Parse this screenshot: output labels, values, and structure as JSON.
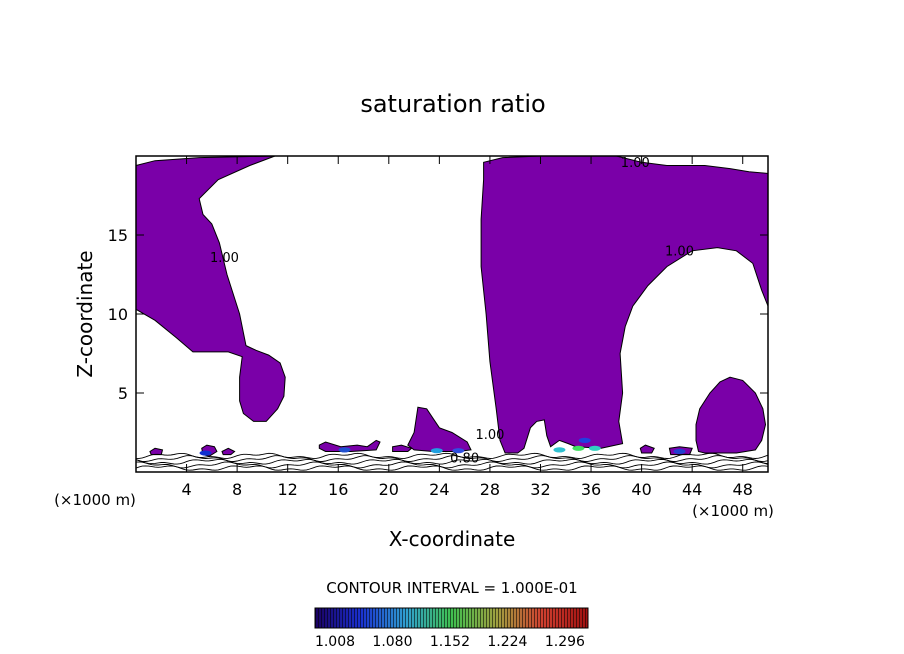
{
  "chart_data": {
    "type": "contour",
    "title": "saturation ratio",
    "xlabel": "X-coordinate",
    "ylabel": "Z-coordinate",
    "x_unit_left": "(×1000 m)",
    "x_unit_right": "(×1000 m)",
    "xlim": [
      0,
      50
    ],
    "ylim": [
      0,
      20
    ],
    "x_ticks": [
      4,
      8,
      12,
      16,
      20,
      24,
      28,
      32,
      36,
      40,
      44,
      48
    ],
    "y_ticks": [
      5,
      10,
      15
    ],
    "contour_interval_label": "CONTOUR INTERVAL = 1.000E-01",
    "contour_labels": [
      {
        "text": "1.00",
        "x": 39.5,
        "y": 19.3
      },
      {
        "text": "1.00",
        "x": 43.0,
        "y": 13.7
      },
      {
        "text": "1.00",
        "x": 7.0,
        "y": 13.3
      },
      {
        "text": "1.00",
        "x": 28.0,
        "y": 2.1
      },
      {
        "text": "0.80",
        "x": 26.0,
        "y": 0.6
      }
    ],
    "fill_color": "#7a00a8",
    "fill_threshold": 1.0,
    "regions": [
      {
        "name": "left upper saturated region",
        "polygon": [
          [
            0,
            19.4
          ],
          [
            1.5,
            19.7
          ],
          [
            5,
            19.9
          ],
          [
            11,
            20
          ],
          [
            9,
            19.4
          ],
          [
            6.5,
            18.5
          ],
          [
            5,
            17.3
          ],
          [
            5.3,
            16.3
          ],
          [
            6,
            15.7
          ],
          [
            6.6,
            14.5
          ],
          [
            7.2,
            12.5
          ],
          [
            8.2,
            10
          ],
          [
            8.7,
            8
          ],
          [
            9.5,
            7.7
          ],
          [
            10.5,
            7.4
          ],
          [
            11.4,
            6.9
          ],
          [
            11.8,
            6
          ],
          [
            11.7,
            4.8
          ],
          [
            11.2,
            4
          ],
          [
            10.3,
            3.2
          ],
          [
            9.3,
            3.2
          ],
          [
            8.5,
            3.7
          ],
          [
            8.2,
            4.5
          ],
          [
            8.2,
            6
          ],
          [
            8.4,
            7.3
          ],
          [
            7.3,
            7.6
          ],
          [
            4.5,
            7.6
          ],
          [
            3.2,
            8.5
          ],
          [
            1.5,
            9.6
          ],
          [
            0,
            10.3
          ]
        ]
      },
      {
        "name": "central tower saturated region",
        "polygon": [
          [
            27.5,
            19.6
          ],
          [
            29,
            19.9
          ],
          [
            32,
            20
          ],
          [
            38,
            20
          ],
          [
            40,
            19.6
          ],
          [
            42,
            19.4
          ],
          [
            45,
            19.4
          ],
          [
            47,
            19.2
          ],
          [
            48.5,
            19
          ],
          [
            50,
            18.9
          ],
          [
            50,
            10.5
          ],
          [
            49.5,
            11.5
          ],
          [
            48.8,
            13.2
          ],
          [
            47.5,
            14
          ],
          [
            46,
            14.2
          ],
          [
            44,
            14
          ],
          [
            42,
            13
          ],
          [
            40.5,
            11.8
          ],
          [
            39.3,
            10.5
          ],
          [
            38.7,
            9.2
          ],
          [
            38.3,
            7.5
          ],
          [
            38.5,
            5
          ],
          [
            38.2,
            3.2
          ],
          [
            38.5,
            1.8
          ],
          [
            36.8,
            1.5
          ],
          [
            34.8,
            1.6
          ],
          [
            34.2,
            1.8
          ],
          [
            33.5,
            2
          ],
          [
            32.8,
            1.6
          ],
          [
            32.5,
            2.3
          ],
          [
            32.3,
            3.3
          ],
          [
            31.7,
            3.2
          ],
          [
            31.2,
            2.8
          ],
          [
            30.7,
            1.5
          ],
          [
            30.2,
            1.2
          ],
          [
            29.2,
            1.2
          ],
          [
            28.8,
            2
          ],
          [
            28.5,
            4
          ],
          [
            28,
            7
          ],
          [
            27.7,
            10
          ],
          [
            27.3,
            13
          ],
          [
            27.3,
            16
          ],
          [
            27.5,
            18.5
          ]
        ]
      },
      {
        "name": "small cloud near 22 km",
        "polygon": [
          [
            22.3,
            4.1
          ],
          [
            23,
            4
          ],
          [
            23.5,
            3.4
          ],
          [
            24,
            2.8
          ],
          [
            25,
            2.5
          ],
          [
            26.2,
            1.9
          ],
          [
            26.5,
            1.4
          ],
          [
            25.5,
            1.3
          ],
          [
            23.5,
            1.3
          ],
          [
            22,
            1.4
          ],
          [
            21.5,
            1.7
          ],
          [
            22,
            2.5
          ]
        ]
      },
      {
        "name": "right lower cloud",
        "polygon": [
          [
            47,
            6
          ],
          [
            48,
            5.8
          ],
          [
            49,
            5
          ],
          [
            49.6,
            4
          ],
          [
            49.8,
            3
          ],
          [
            49.5,
            2
          ],
          [
            49,
            1.4
          ],
          [
            47.5,
            1.2
          ],
          [
            45,
            1.2
          ],
          [
            44.5,
            1.3
          ],
          [
            44.3,
            2
          ],
          [
            44.3,
            3
          ],
          [
            44.6,
            4
          ],
          [
            45.4,
            5
          ],
          [
            46.2,
            5.7
          ]
        ]
      },
      {
        "name": "low saturated band 14-19",
        "polygon": [
          [
            14.5,
            1.7
          ],
          [
            15,
            1.9
          ],
          [
            16.2,
            1.6
          ],
          [
            17.5,
            1.7
          ],
          [
            18.3,
            1.6
          ],
          [
            19,
            2
          ],
          [
            19.3,
            1.9
          ],
          [
            19,
            1.4
          ],
          [
            17,
            1.3
          ],
          [
            15,
            1.3
          ],
          [
            14.5,
            1.5
          ]
        ]
      },
      {
        "name": "low saturated band 20-22",
        "polygon": [
          [
            20.3,
            1.6
          ],
          [
            21,
            1.7
          ],
          [
            21.8,
            1.5
          ],
          [
            21.5,
            1.3
          ],
          [
            20.3,
            1.3
          ]
        ]
      },
      {
        "name": "small patch near 5.5",
        "polygon": [
          [
            5.2,
            1.5
          ],
          [
            5.6,
            1.7
          ],
          [
            6.2,
            1.6
          ],
          [
            6.4,
            1.3
          ],
          [
            5.8,
            1.0
          ],
          [
            5.3,
            1.1
          ]
        ]
      },
      {
        "name": "small patch near 7",
        "polygon": [
          [
            6.8,
            1.3
          ],
          [
            7.3,
            1.5
          ],
          [
            7.8,
            1.3
          ],
          [
            7.5,
            1.1
          ],
          [
            6.9,
            1.1
          ]
        ]
      },
      {
        "name": "small patch near 1.5",
        "polygon": [
          [
            1.1,
            1.3
          ],
          [
            1.5,
            1.5
          ],
          [
            2.1,
            1.4
          ],
          [
            2.0,
            1.1
          ],
          [
            1.2,
            1.1
          ]
        ]
      },
      {
        "name": "small patch near 40.5",
        "polygon": [
          [
            39.9,
            1.5
          ],
          [
            40.3,
            1.7
          ],
          [
            41,
            1.5
          ],
          [
            40.8,
            1.2
          ],
          [
            40,
            1.2
          ]
        ]
      },
      {
        "name": "low band 42-44",
        "polygon": [
          [
            42.2,
            1.5
          ],
          [
            43,
            1.6
          ],
          [
            44,
            1.5
          ],
          [
            43.8,
            1.1
          ],
          [
            42.3,
            1.1
          ]
        ]
      }
    ],
    "high_value_patches": [
      {
        "x": 5.5,
        "y": 1.2,
        "color": "#1030d0"
      },
      {
        "x": 23.8,
        "y": 1.35,
        "color": "#20a0e0"
      },
      {
        "x": 25.5,
        "y": 1.35,
        "color": "#3050e0"
      },
      {
        "x": 33.5,
        "y": 1.4,
        "color": "#30c0d0"
      },
      {
        "x": 35.0,
        "y": 1.5,
        "color": "#40e060"
      },
      {
        "x": 36.3,
        "y": 1.5,
        "color": "#30d0c0"
      },
      {
        "x": 35.5,
        "y": 2.0,
        "color": "#2040e0"
      },
      {
        "x": 16.5,
        "y": 1.4,
        "color": "#2050d0"
      },
      {
        "x": 43.0,
        "y": 1.3,
        "color": "#2040d0"
      }
    ],
    "colorbar": {
      "tick_labels": [
        "1.008",
        "1.080",
        "1.152",
        "1.224",
        "1.296"
      ],
      "stops": [
        "#1a0060",
        "#1a30d0",
        "#30a0d0",
        "#40c050",
        "#a0a040",
        "#d04030",
        "#a01010"
      ],
      "min": 1.008,
      "max": 1.35
    }
  }
}
